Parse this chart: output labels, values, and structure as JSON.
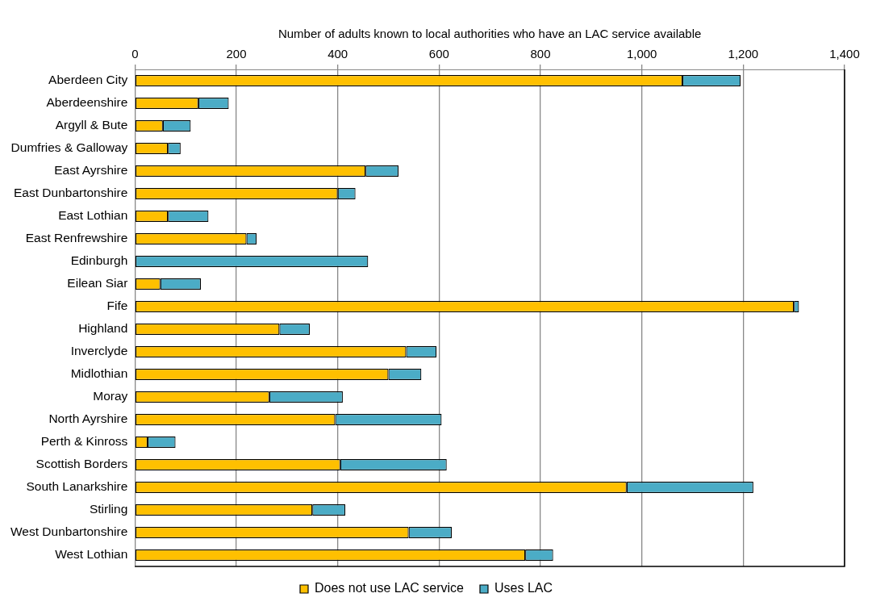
{
  "chart_data": {
    "type": "bar",
    "orientation": "horizontal",
    "stacked": true,
    "xlabel": "Number of adults known to local authorities who have an LAC service available",
    "categories": [
      "Aberdeen City",
      "Aberdeenshire",
      "Argyll & Bute",
      "Dumfries & Galloway",
      "East Ayrshire",
      "East Dunbartonshire",
      "East Lothian",
      "East Renfrewshire",
      "Edinburgh",
      "Eilean Siar",
      "Fife",
      "Highland",
      "Inverclyde",
      "Midlothian",
      "Moray",
      "North Ayrshire",
      "Perth & Kinross",
      "Scottish Borders",
      "South Lanarkshire",
      "Stirling",
      "West Dunbartonshire",
      "West Lothian"
    ],
    "series": [
      {
        "name": "Does not use LAC service",
        "color": "#ffc000",
        "values": [
          1080,
          125,
          55,
          65,
          455,
          400,
          65,
          220,
          0,
          50,
          1300,
          285,
          535,
          500,
          265,
          395,
          25,
          405,
          970,
          350,
          540,
          770
        ]
      },
      {
        "name": "Uses LAC",
        "color": "#4bacc6",
        "values": [
          115,
          60,
          55,
          25,
          65,
          35,
          80,
          20,
          460,
          80,
          10,
          60,
          60,
          65,
          145,
          210,
          55,
          210,
          250,
          65,
          85,
          55
        ]
      }
    ],
    "xlim": [
      0,
      1400
    ],
    "xticks": [
      0,
      200,
      400,
      600,
      800,
      {
        "value": 1000,
        "label": "1,000"
      },
      {
        "value": 1200,
        "label": "1,200"
      },
      {
        "value": 1400,
        "label": "1,400"
      }
    ],
    "grid": "x",
    "legend": "bottom"
  }
}
